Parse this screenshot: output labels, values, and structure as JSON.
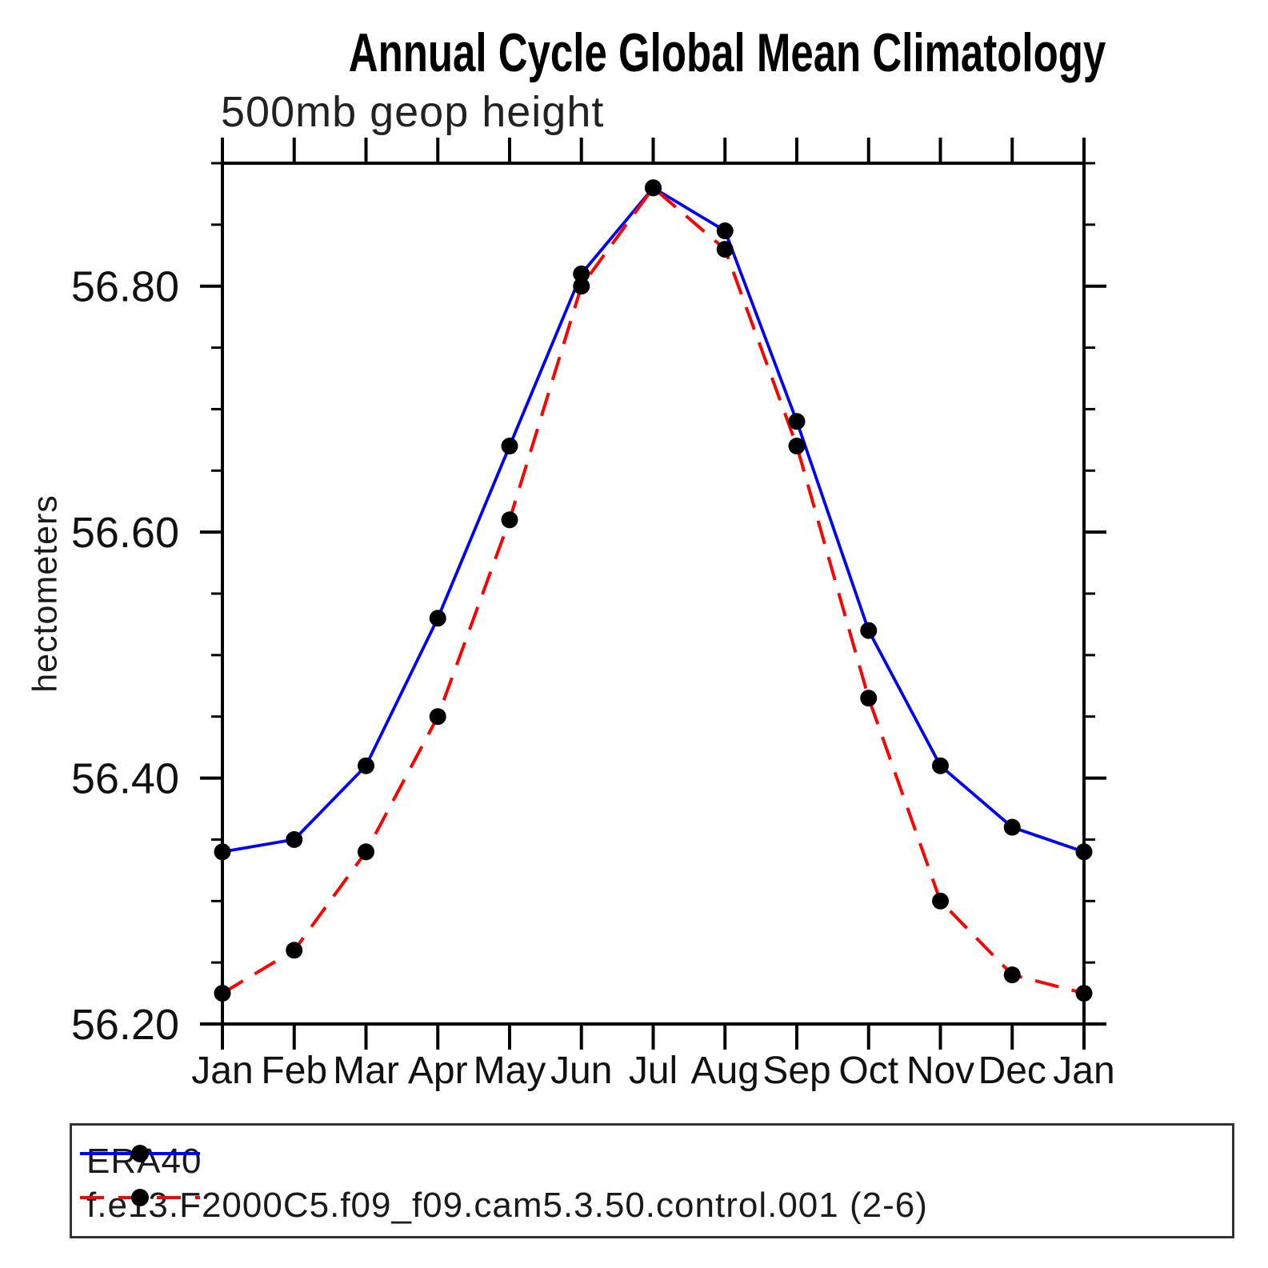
{
  "title": "Annual Cycle Global Mean Climatology",
  "subtitle": "500mb geop height",
  "y_axis_label": "hectometers",
  "chart_data": {
    "type": "line",
    "title": "Annual Cycle Global Mean Climatology",
    "subtitle": "500mb geop height",
    "xlabel": "",
    "ylabel": "hectometers",
    "categories": [
      "Jan",
      "Feb",
      "Mar",
      "Apr",
      "May",
      "Jun",
      "Jul",
      "Aug",
      "Sep",
      "Oct",
      "Nov",
      "Dec",
      "Jan"
    ],
    "series": [
      {
        "name": "ERA40",
        "color": "#0000ff",
        "line_style": "solid",
        "marker": "filled-circle",
        "marker_color": "#000000",
        "values": [
          56.34,
          56.35,
          56.41,
          56.53,
          56.67,
          56.81,
          56.88,
          56.845,
          56.69,
          56.52,
          56.41,
          56.36,
          56.34
        ]
      },
      {
        "name": "f.e13.F2000C5.f09_f09.cam5.3.50.control.001 (2-6)",
        "color": "#ff0000",
        "line_style": "dashed",
        "marker": "filled-circle",
        "marker_color": "#000000",
        "values": [
          56.225,
          56.26,
          56.34,
          56.45,
          56.61,
          56.8,
          56.88,
          56.83,
          56.67,
          56.465,
          56.3,
          56.24,
          56.225
        ]
      }
    ],
    "ylim": [
      56.2,
      56.9
    ],
    "ytick_values": [
      56.2,
      56.4,
      56.6,
      56.8
    ],
    "ytick_labels": [
      "56.20",
      "56.40",
      "56.60",
      "56.80"
    ],
    "ytick_minor_step": 0.05,
    "grid": false,
    "legend_position": "bottom-box"
  },
  "legend": {
    "items": [
      {
        "label": "ERA40",
        "color": "#0000ff",
        "style": "solid"
      },
      {
        "label": "f.e13.F2000C5.f09_f09.cam5.3.50.control.001 (2-6)",
        "color": "#ff0000",
        "style": "dashed"
      }
    ]
  },
  "colors": {
    "axis": "#000000",
    "tick_text": "#111111",
    "marker": "#000000",
    "era40_line": "#0000ff",
    "model_line": "#ff0000",
    "background": "#ffffff"
  }
}
